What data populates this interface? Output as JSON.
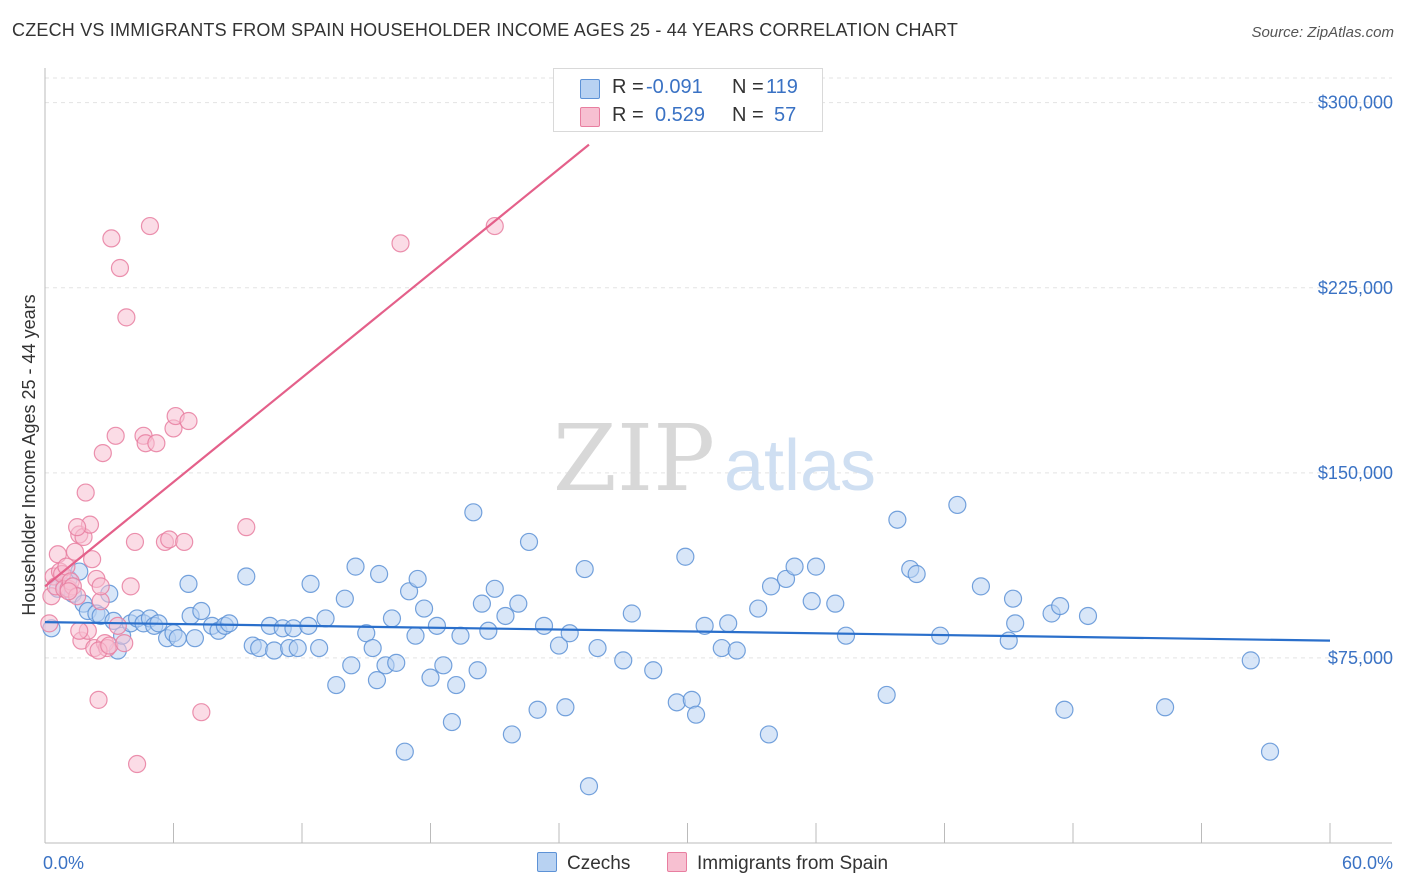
{
  "title": "CZECH VS IMMIGRANTS FROM SPAIN HOUSEHOLDER INCOME AGES 25 - 44 YEARS CORRELATION CHART",
  "source": "Source: ZipAtlas.com",
  "watermark": {
    "zip": "ZIP",
    "atlas": "atlas"
  },
  "colors": {
    "blue_fill": "#b8d2f2",
    "blue_stroke": "#5d92d6",
    "blue_line": "#2a6fcb",
    "pink_fill": "#f7c0d1",
    "pink_stroke": "#e87ea0",
    "pink_line": "#e4608a",
    "axis_text": "#3a72c4",
    "grid": "#e3e3e3"
  },
  "legend": {
    "rows": [
      {
        "r_label": "R =",
        "r_value": "-0.091",
        "n_label": "N =",
        "n_value": "119"
      },
      {
        "r_label": "R =",
        "r_value": "0.529",
        "n_label": "N =",
        "n_value": "57"
      }
    ]
  },
  "bottom_legend": {
    "czechs": "Czechs",
    "spain": "Immigrants from Spain"
  },
  "chart_data": {
    "type": "scatter",
    "xlabel": "",
    "ylabel": "Householder Income Ages 25 - 44 years",
    "xlim": [
      0,
      60
    ],
    "ylim": [
      0,
      310000
    ],
    "x_tick_labels": [
      "0.0%",
      "60.0%"
    ],
    "y_ticks": [
      75000,
      150000,
      225000,
      300000
    ],
    "y_tick_labels": [
      "$75,000",
      "$150,000",
      "$225,000",
      "$300,000"
    ],
    "series": [
      {
        "name": "Czechs",
        "trend": {
          "x": [
            0,
            60
          ],
          "y": [
            89500,
            82000
          ]
        },
        "points": [
          [
            0.3,
            87000
          ],
          [
            0.6,
            103000
          ],
          [
            0.9,
            104000
          ],
          [
            1.1,
            107000
          ],
          [
            1.3,
            101000
          ],
          [
            1.6,
            110000
          ],
          [
            1.8,
            97000
          ],
          [
            2.0,
            94000
          ],
          [
            2.4,
            93000
          ],
          [
            2.6,
            92000
          ],
          [
            3.0,
            101000
          ],
          [
            3.2,
            90000
          ],
          [
            3.4,
            78000
          ],
          [
            3.6,
            84000
          ],
          [
            4.0,
            89000
          ],
          [
            4.3,
            91000
          ],
          [
            4.6,
            89000
          ],
          [
            4.9,
            91000
          ],
          [
            5.1,
            88000
          ],
          [
            5.3,
            89000
          ],
          [
            5.7,
            83000
          ],
          [
            6.0,
            85000
          ],
          [
            6.2,
            83000
          ],
          [
            6.7,
            105000
          ],
          [
            6.8,
            92000
          ],
          [
            7.0,
            83000
          ],
          [
            7.3,
            94000
          ],
          [
            7.8,
            88000
          ],
          [
            8.1,
            86000
          ],
          [
            8.4,
            88000
          ],
          [
            8.6,
            89000
          ],
          [
            9.4,
            108000
          ],
          [
            9.7,
            80000
          ],
          [
            10.0,
            79000
          ],
          [
            10.5,
            88000
          ],
          [
            10.7,
            78000
          ],
          [
            11.1,
            87000
          ],
          [
            11.4,
            79000
          ],
          [
            11.6,
            87000
          ],
          [
            11.8,
            79000
          ],
          [
            12.3,
            88000
          ],
          [
            12.4,
            105000
          ],
          [
            12.8,
            79000
          ],
          [
            13.1,
            91000
          ],
          [
            13.6,
            64000
          ],
          [
            14.0,
            99000
          ],
          [
            14.3,
            72000
          ],
          [
            14.5,
            112000
          ],
          [
            15.0,
            85000
          ],
          [
            15.3,
            79000
          ],
          [
            15.5,
            66000
          ],
          [
            15.6,
            109000
          ],
          [
            15.9,
            72000
          ],
          [
            16.2,
            91000
          ],
          [
            16.4,
            73000
          ],
          [
            16.8,
            37000
          ],
          [
            17.0,
            102000
          ],
          [
            17.3,
            84000
          ],
          [
            17.4,
            107000
          ],
          [
            17.7,
            95000
          ],
          [
            18.0,
            67000
          ],
          [
            18.3,
            88000
          ],
          [
            18.6,
            72000
          ],
          [
            19.0,
            49000
          ],
          [
            19.2,
            64000
          ],
          [
            19.4,
            84000
          ],
          [
            20.0,
            134000
          ],
          [
            20.2,
            70000
          ],
          [
            20.4,
            97000
          ],
          [
            20.7,
            86000
          ],
          [
            21.0,
            103000
          ],
          [
            21.5,
            92000
          ],
          [
            21.8,
            44000
          ],
          [
            22.1,
            97000
          ],
          [
            22.6,
            122000
          ],
          [
            23.0,
            54000
          ],
          [
            23.3,
            88000
          ],
          [
            24.0,
            80000
          ],
          [
            24.3,
            55000
          ],
          [
            24.5,
            85000
          ],
          [
            25.2,
            111000
          ],
          [
            25.4,
            23000
          ],
          [
            25.8,
            79000
          ],
          [
            27.0,
            74000
          ],
          [
            27.4,
            93000
          ],
          [
            28.4,
            70000
          ],
          [
            29.5,
            57000
          ],
          [
            29.9,
            116000
          ],
          [
            30.2,
            58000
          ],
          [
            30.4,
            52000
          ],
          [
            30.8,
            88000
          ],
          [
            31.6,
            79000
          ],
          [
            31.9,
            89000
          ],
          [
            32.3,
            78000
          ],
          [
            33.3,
            95000
          ],
          [
            33.8,
            44000
          ],
          [
            33.9,
            104000
          ],
          [
            34.6,
            107000
          ],
          [
            35.0,
            112000
          ],
          [
            35.8,
            98000
          ],
          [
            36.0,
            112000
          ],
          [
            36.9,
            97000
          ],
          [
            37.4,
            84000
          ],
          [
            39.3,
            60000
          ],
          [
            39.8,
            131000
          ],
          [
            40.4,
            111000
          ],
          [
            40.7,
            109000
          ],
          [
            41.8,
            84000
          ],
          [
            42.6,
            137000
          ],
          [
            43.7,
            104000
          ],
          [
            45.0,
            82000
          ],
          [
            45.2,
            99000
          ],
          [
            45.3,
            89000
          ],
          [
            47.0,
            93000
          ],
          [
            47.4,
            96000
          ],
          [
            47.6,
            54000
          ],
          [
            48.7,
            92000
          ],
          [
            52.3,
            55000
          ],
          [
            56.3,
            74000
          ],
          [
            57.2,
            37000
          ]
        ]
      },
      {
        "name": "Immigrants from Spain",
        "trend": {
          "x": [
            0,
            25.4
          ],
          "y": [
            104000,
            283000
          ]
        },
        "points": [
          [
            0.2,
            89000
          ],
          [
            0.3,
            100000
          ],
          [
            0.4,
            108000
          ],
          [
            0.5,
            104000
          ],
          [
            0.6,
            117000
          ],
          [
            0.7,
            110000
          ],
          [
            0.8,
            109000
          ],
          [
            0.9,
            103000
          ],
          [
            1.0,
            112000
          ],
          [
            1.1,
            103000
          ],
          [
            1.2,
            106000
          ],
          [
            1.3,
            104000
          ],
          [
            1.4,
            118000
          ],
          [
            1.5,
            100000
          ],
          [
            1.6,
            125000
          ],
          [
            1.7,
            82000
          ],
          [
            1.8,
            124000
          ],
          [
            1.9,
            142000
          ],
          [
            2.0,
            86000
          ],
          [
            2.1,
            129000
          ],
          [
            2.2,
            115000
          ],
          [
            2.3,
            79000
          ],
          [
            2.4,
            107000
          ],
          [
            2.5,
            58000
          ],
          [
            2.6,
            98000
          ],
          [
            2.7,
            158000
          ],
          [
            2.8,
            81000
          ],
          [
            2.9,
            79000
          ],
          [
            1.5,
            128000
          ],
          [
            1.1,
            102000
          ],
          [
            2.5,
            78000
          ],
          [
            2.6,
            104000
          ],
          [
            3.0,
            80000
          ],
          [
            3.1,
            245000
          ],
          [
            3.3,
            165000
          ],
          [
            3.4,
            88000
          ],
          [
            3.5,
            233000
          ],
          [
            3.7,
            81000
          ],
          [
            3.8,
            213000
          ],
          [
            4.0,
            104000
          ],
          [
            4.2,
            122000
          ],
          [
            4.3,
            32000
          ],
          [
            4.6,
            165000
          ],
          [
            4.7,
            162000
          ],
          [
            4.9,
            250000
          ],
          [
            5.2,
            162000
          ],
          [
            5.6,
            122000
          ],
          [
            5.8,
            123000
          ],
          [
            6.0,
            168000
          ],
          [
            6.1,
            173000
          ],
          [
            6.5,
            122000
          ],
          [
            6.7,
            171000
          ],
          [
            7.3,
            53000
          ],
          [
            9.4,
            128000
          ],
          [
            16.6,
            243000
          ],
          [
            21.0,
            250000
          ],
          [
            1.6,
            86000
          ]
        ]
      }
    ]
  }
}
